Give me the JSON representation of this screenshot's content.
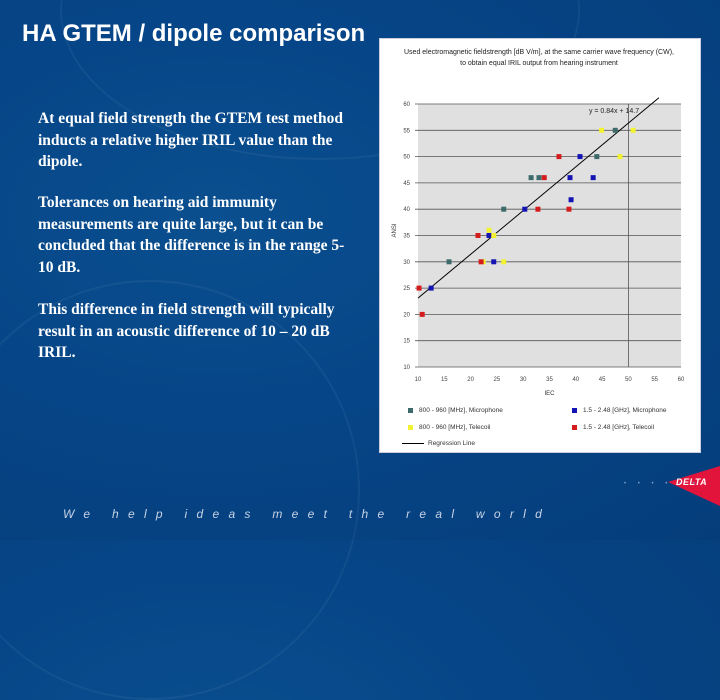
{
  "slide": {
    "title": "HA GTEM / dipole comparison",
    "paragraphs": [
      "At equal field strength the GTEM test method inducts a relative higher IRIL value than the dipole.",
      "Tolerances on hearing aid immunity measurements are quite large, but it can be concluded that the difference is in the range 5-10 dB.",
      "This difference in field strength will typically result in an acoustic difference of 10 – 20 dB IRIL."
    ],
    "footer_slogan": "We help ideas meet the real world",
    "logo_text": "DELTA",
    "colors": {
      "background": "#064587",
      "logo_red": "#e3143c"
    }
  },
  "chart_data": {
    "type": "scatter",
    "title": "Used electromagnetic fieldstrength [dB V/m], at the same carrier wave frequency (CW), to obtain equal IRIL output from hearing instrument",
    "xlabel": "IEC",
    "ylabel": "ANSI",
    "xlim": [
      10,
      60
    ],
    "ylim": [
      10,
      60
    ],
    "xticks": [
      10,
      15,
      20,
      25,
      30,
      35,
      40,
      45,
      50,
      55,
      60
    ],
    "yticks": [
      10,
      15,
      20,
      25,
      30,
      35,
      40,
      45,
      50,
      55,
      60
    ],
    "grid": "horizontal lines at each y tick; single vertical line at x=50",
    "plot_background": "#e0e0e0",
    "annotation": "y = 0.84x + 14.7",
    "regression": {
      "slope": 0.84,
      "intercept": 14.7,
      "x_range": [
        10,
        55.8
      ]
    },
    "legend_position": "bottom",
    "series": [
      {
        "name": "800 - 960 [MHz], Microphone",
        "color": "#3d6b6b",
        "points": [
          [
            15.9,
            30
          ],
          [
            26.3,
            40
          ],
          [
            31.5,
            46
          ],
          [
            33.0,
            46
          ],
          [
            44.0,
            50
          ],
          [
            47.5,
            55
          ]
        ]
      },
      {
        "name": "1.5 - 2.48 [GHz], Microphone",
        "color": "#1414b4",
        "points": [
          [
            12.5,
            25
          ],
          [
            23.5,
            35
          ],
          [
            24.4,
            30
          ],
          [
            30.3,
            40
          ],
          [
            38.9,
            46
          ],
          [
            39.1,
            41.8
          ],
          [
            40.8,
            50
          ],
          [
            43.3,
            46
          ]
        ]
      },
      {
        "name": "800 - 960 [MHz], Telecoil",
        "color": "#f2f230",
        "points": [
          [
            22.4,
            30
          ],
          [
            23.5,
            36
          ],
          [
            24.4,
            35
          ],
          [
            26.3,
            30
          ],
          [
            44.9,
            55
          ],
          [
            48.4,
            50
          ],
          [
            50.9,
            55
          ]
        ]
      },
      {
        "name": "1.5 - 2.48 [GHz], Telecoil",
        "color": "#d41c1c",
        "points": [
          [
            10.2,
            25
          ],
          [
            10.8,
            20
          ],
          [
            21.4,
            35
          ],
          [
            22.0,
            30
          ],
          [
            32.8,
            40
          ],
          [
            34.0,
            46
          ],
          [
            36.8,
            50
          ],
          [
            38.7,
            40
          ]
        ]
      }
    ],
    "regression_label": "Regression Line"
  }
}
